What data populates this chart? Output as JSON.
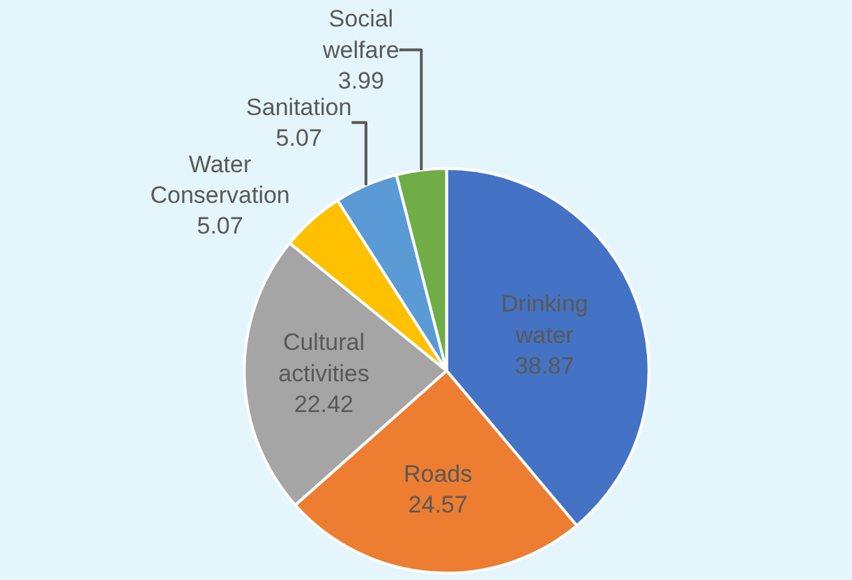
{
  "chart_data": {
    "type": "pie",
    "categories": [
      "Drinking water",
      "Roads",
      "Cultural activities",
      "Water Conservation",
      "Sanitation",
      "Social welfare"
    ],
    "values": [
      38.87,
      24.57,
      22.42,
      5.07,
      5.07,
      3.99
    ],
    "colors": [
      "#4472c4",
      "#ed7d31",
      "#a5a5a5",
      "#ffc000",
      "#5b9bd5",
      "#70ad47"
    ],
    "data_labels": true,
    "legend": false
  }
}
